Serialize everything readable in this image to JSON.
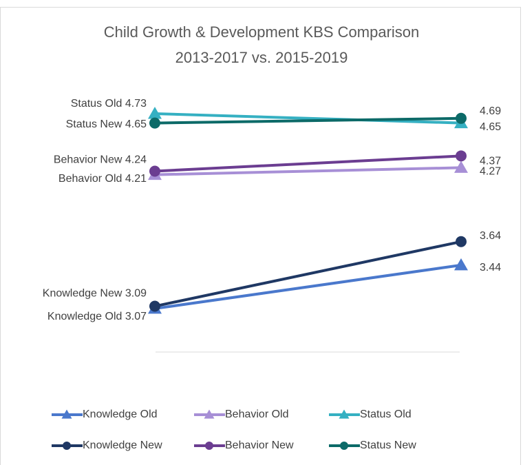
{
  "chart_data": {
    "type": "line",
    "title": [
      "Child Growth & Development KBS Comparison",
      "2013-2017 vs. 2015-2019"
    ],
    "categories": [
      null,
      null
    ],
    "ylim": [
      2.7,
      4.9
    ],
    "series": [
      {
        "name": "Knowledge Old",
        "color": "#4a78cc",
        "marker": "triangle",
        "values": [
          3.07,
          3.44
        ],
        "value_labels": [
          "Knowledge Old 3.07",
          "3.44"
        ]
      },
      {
        "name": "Behavior Old",
        "color": "#a78fd6",
        "marker": "triangle",
        "values": [
          4.21,
          4.27
        ],
        "value_labels": [
          "Behavior Old 4.21",
          "4.27"
        ]
      },
      {
        "name": "Status Old",
        "color": "#35b0c2",
        "marker": "triangle",
        "values": [
          4.73,
          4.65
        ],
        "value_labels": [
          "Status Old 4.73",
          "4.65"
        ]
      },
      {
        "name": "Knowledge New",
        "color": "#1f3864",
        "marker": "circle",
        "values": [
          3.09,
          3.64
        ],
        "value_labels": [
          "Knowledge New 3.09",
          "3.64"
        ]
      },
      {
        "name": "Behavior New",
        "color": "#6b3d91",
        "marker": "circle",
        "values": [
          4.24,
          4.37
        ],
        "value_labels": [
          "Behavior New 4.24",
          "4.37"
        ]
      },
      {
        "name": "Status New",
        "color": "#0c6a68",
        "marker": "circle",
        "values": [
          4.65,
          4.69
        ],
        "value_labels": [
          "Status New 4.65",
          "4.69"
        ]
      }
    ]
  }
}
